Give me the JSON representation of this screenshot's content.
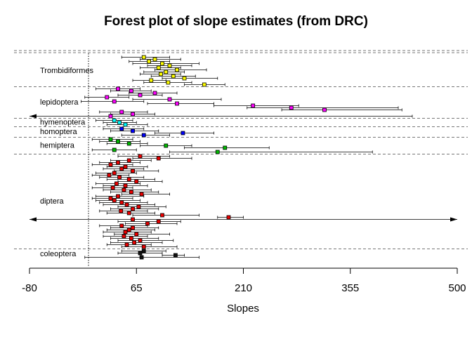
{
  "chart_data": {
    "type": "forest",
    "title": "Forest plot of slope estimates (from DRC)",
    "x_label": "Slopes",
    "xlim": [
      -80,
      500
    ],
    "xticks": [
      -80,
      65,
      210,
      355,
      500
    ],
    "ref_line": 0,
    "series": [
      {
        "name": "Trombidiformes",
        "color": "#ffff00",
        "estimates": [
          75,
          90,
          82,
          100,
          110,
          95,
          120,
          105,
          98,
          115,
          130,
          85,
          108,
          157
        ],
        "lower": [
          45,
          70,
          55,
          60,
          80,
          70,
          90,
          75,
          70,
          85,
          100,
          60,
          75,
          130
        ],
        "upper": [
          110,
          125,
          110,
          150,
          140,
          125,
          160,
          130,
          125,
          145,
          175,
          105,
          140,
          185
        ]
      },
      {
        "name": "lepidoptera",
        "color": "#ff00ff",
        "estimates": [
          40,
          58,
          90,
          70,
          25,
          110,
          35,
          120,
          223,
          275,
          320,
          45,
          60,
          30
        ],
        "lower": [
          10,
          30,
          55,
          40,
          -5,
          60,
          -10,
          80,
          170,
          215,
          262,
          15,
          30,
          -120
        ],
        "upper": [
          70,
          85,
          120,
          100,
          55,
          180,
          75,
          170,
          285,
          420,
          425,
          80,
          90,
          439
        ]
      },
      {
        "name": "hymenoptera",
        "color": "#00ffff",
        "estimates": [
          35,
          42,
          50
        ],
        "lower": [
          10,
          20,
          25
        ],
        "upper": [
          60,
          65,
          80
        ]
      },
      {
        "name": "homoptera",
        "color": "#0000ff",
        "estimates": [
          45,
          60,
          128,
          75
        ],
        "lower": [
          20,
          30,
          90,
          45
        ],
        "upper": [
          75,
          95,
          170,
          110
        ]
      },
      {
        "name": "hemiptera",
        "color": "#00bb00",
        "estimates": [
          30,
          40,
          55,
          105,
          185,
          35,
          175
        ],
        "lower": [
          5,
          15,
          25,
          70,
          130,
          5,
          110
        ],
        "upper": [
          60,
          70,
          80,
          140,
          245,
          65,
          385
        ]
      },
      {
        "name": "diptera",
        "color": "#ee0000",
        "estimates": [
          70,
          95,
          55,
          40,
          30,
          50,
          45,
          60,
          35,
          28,
          42,
          55,
          65,
          38,
          50,
          33,
          48,
          58,
          72,
          40,
          30,
          35,
          45,
          52,
          68,
          60,
          44,
          55,
          100,
          190,
          60,
          95,
          80,
          45,
          60,
          55,
          50,
          65,
          48,
          58,
          70,
          62,
          52,
          75
        ],
        "lower": [
          40,
          60,
          30,
          15,
          5,
          25,
          20,
          35,
          10,
          5,
          15,
          25,
          40,
          10,
          20,
          5,
          20,
          30,
          45,
          10,
          5,
          10,
          15,
          20,
          40,
          30,
          15,
          25,
          60,
          175,
          -150,
          40,
          50,
          15,
          30,
          25,
          20,
          35,
          20,
          30,
          40,
          30,
          25,
          45
        ],
        "upper": [
          110,
          140,
          85,
          70,
          60,
          80,
          75,
          95,
          65,
          55,
          75,
          90,
          100,
          70,
          80,
          60,
          85,
          95,
          110,
          75,
          60,
          70,
          80,
          90,
          105,
          95,
          80,
          90,
          150,
          210,
          650,
          125,
          120,
          80,
          95,
          90,
          85,
          110,
          80,
          95,
          115,
          100,
          85,
          120
        ]
      },
      {
        "name": "coleoptera",
        "color": "#111111",
        "estimates": [
          75,
          70,
          118,
          72
        ],
        "lower": [
          45,
          40,
          100,
          -5
        ],
        "upper": [
          105,
          100,
          130,
          150
        ]
      }
    ]
  }
}
